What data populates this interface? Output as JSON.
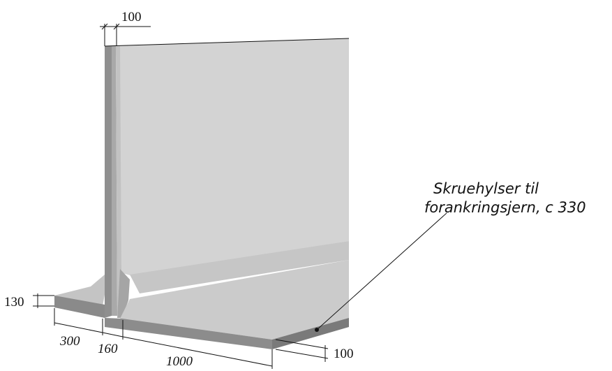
{
  "dimensions": {
    "wall_thickness": "100",
    "toe_height": "130",
    "toe_length": "300",
    "wall_base": "160",
    "heel_length": "1000",
    "slab_thickness": "100"
  },
  "callout": {
    "line1": "Skruehylser til",
    "line2": "forankringsjern, c 330"
  },
  "colors": {
    "wall_face": "#d2d2d2",
    "wall_edge": "#9a9a9a",
    "slab_top": "#c8c8c8",
    "slab_side": "#8e8e8e",
    "shadow": "#b4b4b4"
  }
}
